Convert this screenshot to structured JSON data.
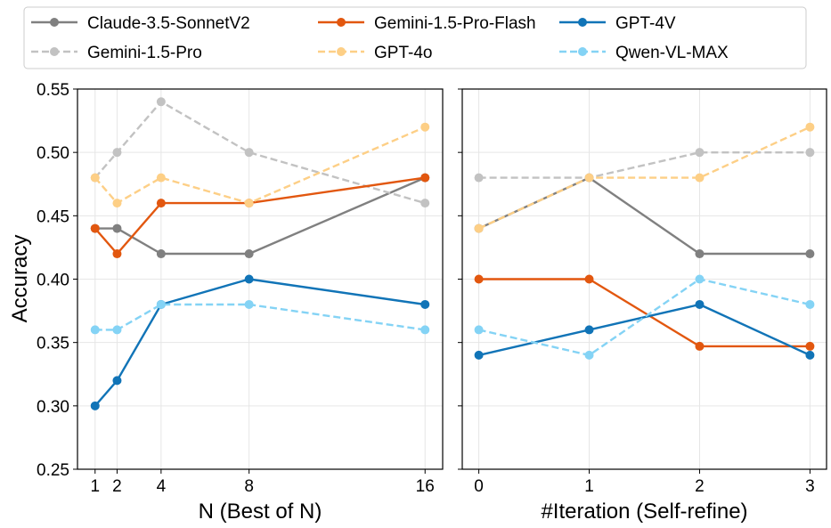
{
  "chart_data": {
    "type": "line",
    "shared_ylabel": "Accuracy",
    "ylim": [
      0.25,
      0.55
    ],
    "yticks": [
      "0.25",
      "0.30",
      "0.35",
      "0.40",
      "0.45",
      "0.50",
      "0.55"
    ],
    "grid": true,
    "legend_position": "top",
    "series_styles": [
      {
        "name": "Claude-3.5-SonnetV2",
        "color": "#808080",
        "dash": "solid"
      },
      {
        "name": "Gemini-1.5-Pro",
        "color": "#c2c2c2",
        "dash": "dashed"
      },
      {
        "name": "Gemini-1.5-Pro-Flash",
        "color": "#e2570f",
        "dash": "solid"
      },
      {
        "name": "GPT-4o",
        "color": "#fdcf86",
        "dash": "dashed"
      },
      {
        "name": "GPT-4V",
        "color": "#1174b7",
        "dash": "solid"
      },
      {
        "name": "Qwen-VL-MAX",
        "color": "#84d3f5",
        "dash": "dashed"
      }
    ],
    "panels": [
      {
        "id": "left",
        "xlabel": "N (Best of N)",
        "x": [
          1,
          2,
          4,
          8,
          16
        ],
        "xticks": [
          "1",
          "2",
          "4",
          "8",
          "16"
        ],
        "xlim": [
          0.2,
          16.8
        ],
        "series": [
          {
            "name": "Claude-3.5-SonnetV2",
            "values": [
              0.44,
              0.44,
              0.42,
              0.42,
              0.48
            ]
          },
          {
            "name": "Gemini-1.5-Pro",
            "values": [
              0.48,
              0.5,
              0.54,
              0.5,
              0.46
            ]
          },
          {
            "name": "Gemini-1.5-Pro-Flash",
            "values": [
              0.44,
              0.42,
              0.46,
              0.46,
              0.48
            ]
          },
          {
            "name": "GPT-4o",
            "values": [
              0.48,
              0.46,
              0.48,
              0.46,
              0.52
            ]
          },
          {
            "name": "GPT-4V",
            "values": [
              0.3,
              0.32,
              0.38,
              0.4,
              0.38
            ]
          },
          {
            "name": "Qwen-VL-MAX",
            "values": [
              0.36,
              0.36,
              0.38,
              0.38,
              0.36
            ]
          }
        ]
      },
      {
        "id": "right",
        "xlabel": "#Iteration (Self-refine)",
        "x": [
          0,
          1,
          2,
          3
        ],
        "xticks": [
          "0",
          "1",
          "2",
          "3"
        ],
        "xlim": [
          -0.15,
          3.15
        ],
        "series": [
          {
            "name": "Claude-3.5-SonnetV2",
            "values": [
              0.44,
              0.48,
              0.42,
              0.42
            ]
          },
          {
            "name": "Gemini-1.5-Pro",
            "values": [
              0.48,
              0.48,
              0.5,
              0.5
            ]
          },
          {
            "name": "Gemini-1.5-Pro-Flash",
            "values": [
              0.4,
              0.4,
              0.347,
              0.347
            ]
          },
          {
            "name": "GPT-4o",
            "values": [
              0.44,
              0.48,
              0.48,
              0.52
            ]
          },
          {
            "name": "GPT-4V",
            "values": [
              0.34,
              0.36,
              0.38,
              0.34
            ]
          },
          {
            "name": "Qwen-VL-MAX",
            "values": [
              0.36,
              0.34,
              0.4,
              0.38
            ]
          }
        ]
      }
    ]
  }
}
